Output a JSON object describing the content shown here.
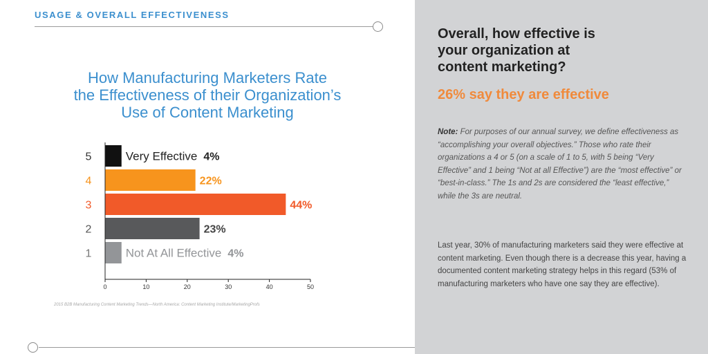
{
  "section_label": "USAGE & OVERALL EFFECTIVENESS",
  "chart_title_lines": [
    "How Manufacturing Marketers Rate",
    "the Effectiveness of their Organization’s",
    "Use of Content Marketing"
  ],
  "source_note": "2015 B2B Manufacturing Content Marketing Trends—North America: Content Marketing Institute/MarketingProfs",
  "sidebar": {
    "question_lines": [
      "Overall, how effective is",
      "your organization at",
      "content marketing?"
    ],
    "highlight": "26% say they are effective",
    "note_label": "Note:",
    "note_text": " For purposes of our annual survey, we define effectiveness as “accomplishing your overall objectives.” Those who rate their organizations a 4 or 5 (on a scale of 1 to 5, with 5 being “Very Effective” and 1 being “Not at all Effective”) are the “most effective” or “best-in-class.” The 1s and 2s are considered the “least effective,” while the 3s are neutral.",
    "body": "Last year, 30% of manufacturing marketers said they were effective at content marketing. Even though there is a decrease this year, having a documented content marketing strategy helps in this regard (53% of manufacturing marketers who have one say they are effective)."
  },
  "chart_data": {
    "type": "bar",
    "orientation": "horizontal",
    "categories": [
      "5",
      "4",
      "3",
      "2",
      "1"
    ],
    "values": [
      4,
      22,
      44,
      23,
      4
    ],
    "value_labels": [
      "4%",
      "22%",
      "44%",
      "23%",
      "4%"
    ],
    "category_descriptions": [
      "Very Effective",
      "",
      "",
      "",
      "Not At All Effective"
    ],
    "colors": [
      "#111111",
      "#f7941d",
      "#f15a29",
      "#58595b",
      "#939598"
    ],
    "category_label_colors": [
      "#333333",
      "#f7941d",
      "#f15a29",
      "#555555",
      "#777777"
    ],
    "value_label_colors": [
      "#222222",
      "#f7941d",
      "#f15a29",
      "#444444",
      "#939598"
    ],
    "description_colors": [
      "#222222",
      "",
      "",
      "",
      "#939598"
    ],
    "xticks": [
      0,
      10,
      20,
      30,
      40,
      50
    ],
    "xlim": [
      0,
      50
    ],
    "title": "How Manufacturing Marketers Rate the Effectiveness of their Organization’s Use of Content Marketing",
    "xlabel": "",
    "ylabel": ""
  }
}
